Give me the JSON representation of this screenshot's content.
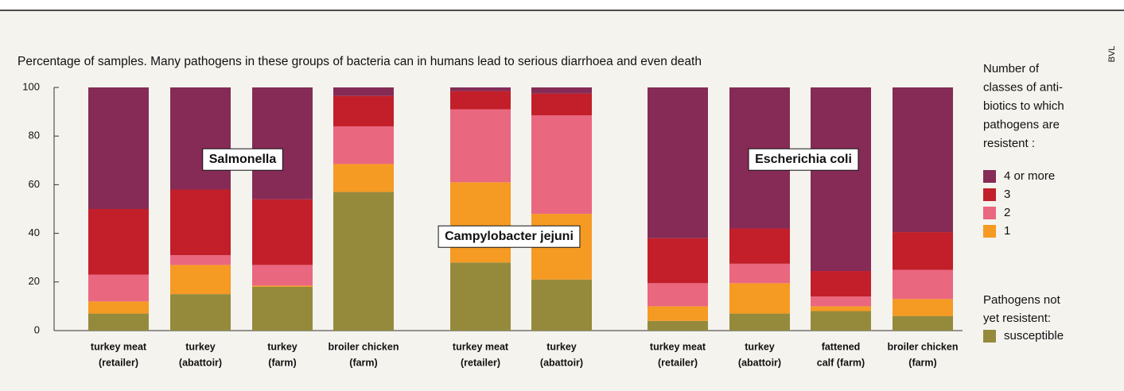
{
  "chart_data": {
    "type": "stacked_bar",
    "title": "Percentage of samples. Many pathogens in these groups of bacteria can in humans lead to serious diarrhoea and even death",
    "source": "BVL",
    "categories": [
      [
        "turkey meat",
        "(retailer)"
      ],
      [
        "turkey",
        "(abattoir)"
      ],
      [
        "turkey",
        "(farm)"
      ],
      [
        "broiler chicken",
        "(farm)"
      ],
      [
        "turkey meat",
        "(retailer)"
      ],
      [
        "turkey",
        "(abattoir)"
      ],
      [
        "turkey meat",
        "(retailer)"
      ],
      [
        "turkey",
        "(abattoir)"
      ],
      [
        "fattened",
        "calf (farm)"
      ],
      [
        "broiler chicken",
        "(farm)"
      ]
    ],
    "annotations": [
      "Salmonella",
      "Campylobacter jejuni",
      "Escherichia coli"
    ],
    "legend_title": [
      "Number of",
      "classes of anti-",
      "biotics to which",
      "pathogens are",
      "resistent :"
    ],
    "legend_title2": [
      "Pathogens not",
      "yet resistent:"
    ],
    "series": [
      {
        "name": "4 or more",
        "color": "#852b56",
        "values": [
          50,
          42,
          46,
          3.5,
          1.5,
          2.5,
          62,
          58,
          75.5,
          59.5
        ]
      },
      {
        "name": "3",
        "color": "#c21f2a",
        "values": [
          27,
          27,
          27,
          12.5,
          7.5,
          9,
          18.5,
          14.5,
          10.5,
          15.5
        ]
      },
      {
        "name": "2",
        "color": "#ea6780",
        "values": [
          11,
          4,
          8.5,
          15.5,
          30,
          40.5,
          9.5,
          8,
          4,
          12
        ]
      },
      {
        "name": "1",
        "color": "#f59a23",
        "values": [
          5,
          12,
          0.5,
          11.5,
          33,
          27,
          6,
          12.5,
          2,
          7
        ]
      },
      {
        "name": "susceptible",
        "color": "#958a3c",
        "values": [
          7,
          15,
          18,
          57,
          28,
          21,
          4,
          7,
          8,
          6
        ]
      }
    ],
    "ylim": [
      0,
      100
    ],
    "yticks": [
      0,
      20,
      40,
      60,
      80,
      100
    ]
  }
}
